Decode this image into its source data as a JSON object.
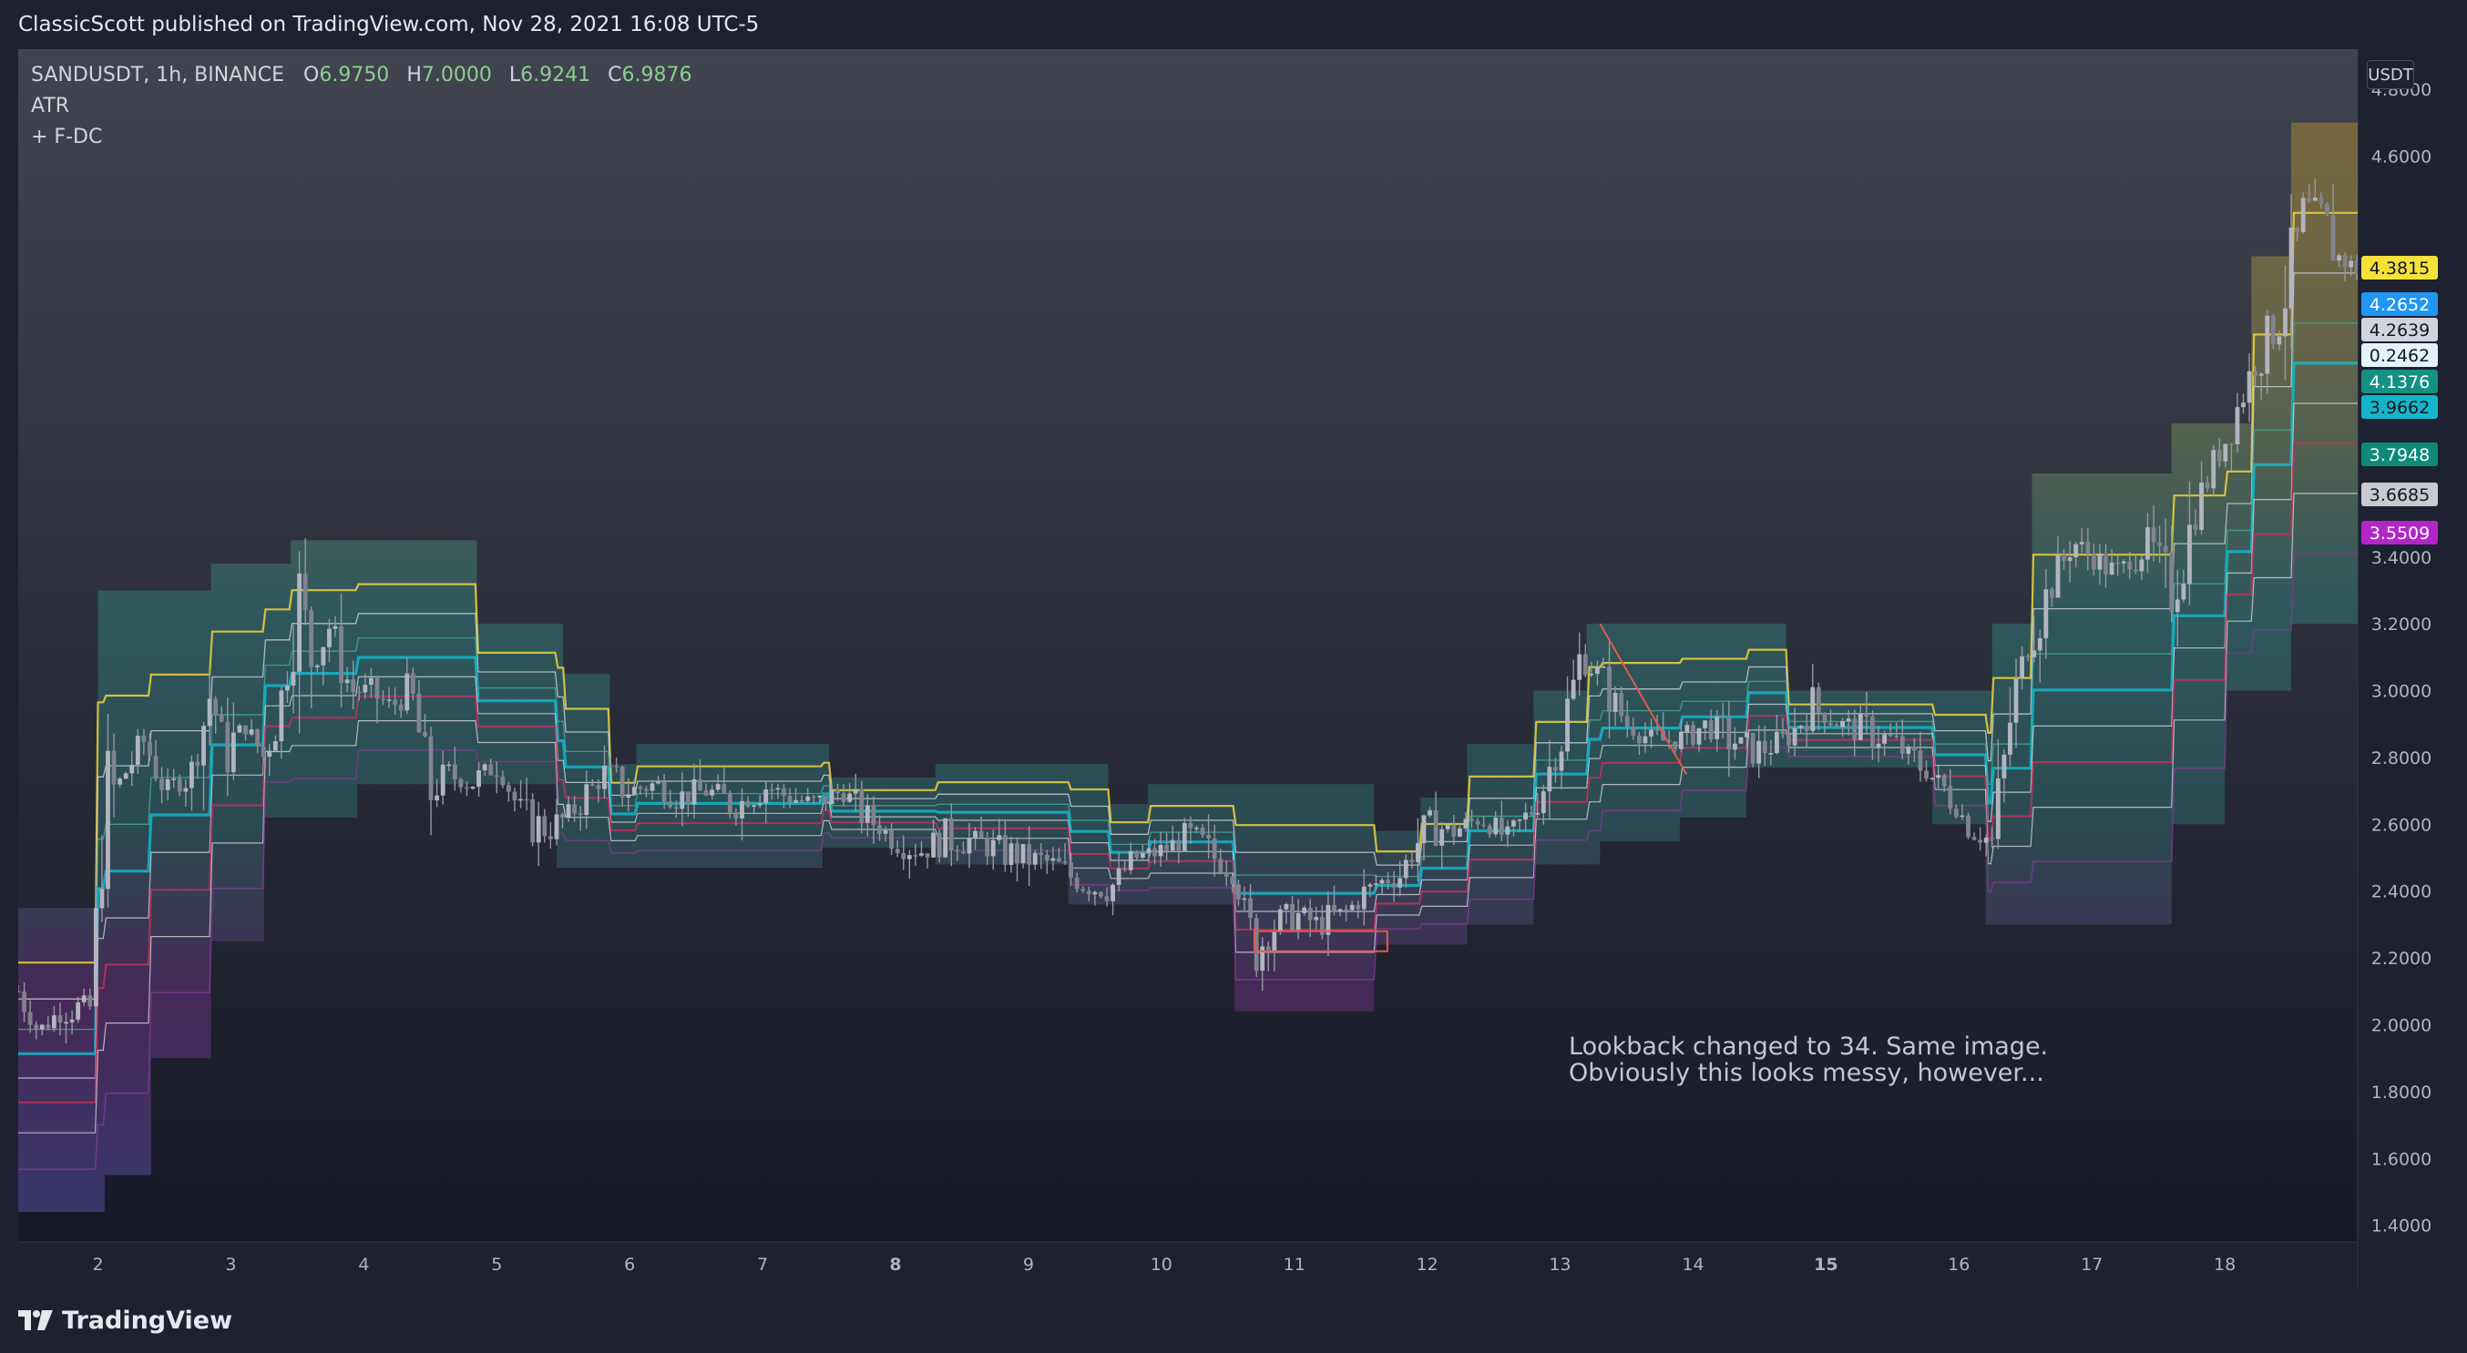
{
  "header": {
    "published": "ClassicScott published on TradingView.com, Nov 28, 2021 16:08 UTC-5"
  },
  "legend": {
    "symbol": "SANDUSDT, 1h, BINANCE",
    "o_label": "O",
    "o_value": "6.9750",
    "h_label": "H",
    "h_value": "7.0000",
    "l_label": "L",
    "l_value": "6.9241",
    "c_label": "C",
    "c_value": "6.9876",
    "indicator1": "ATR",
    "indicator2": "+ F-DC"
  },
  "currency": "USDT",
  "note": "Lookback changed to 34. Same image.\nObviously this looks messy, however...",
  "footer": {
    "brand": "TradingView"
  },
  "price_badges": [
    {
      "value": "4.3815",
      "bg": "#f5e13a",
      "fg": "#131722"
    },
    {
      "value": "4.2652",
      "bg": "#2196f3",
      "fg": "#ffffff"
    },
    {
      "value": "4.2639",
      "bg": "#d1d4dc",
      "fg": "#131722"
    },
    {
      "value": "0.2462",
      "bg": "#e3f2fd",
      "fg": "#131722"
    },
    {
      "value": "4.1376",
      "bg": "#149184",
      "fg": "#ffffff"
    },
    {
      "value": "3.9662",
      "bg": "#14b5c8",
      "fg": "#131722"
    },
    {
      "value": "3.7948",
      "bg": "#0f8a7a",
      "fg": "#ffffff"
    },
    {
      "value": "3.6685",
      "bg": "#c8cad0",
      "fg": "#131722"
    },
    {
      "value": "3.5509",
      "bg": "#b226c8",
      "fg": "#ffffff"
    }
  ],
  "colors": {
    "background_top": "#3f424f",
    "background_bottom": "#161925",
    "candles": "#9598a1",
    "upper_band": "#f0d43a",
    "mid_band": "#14b5c8",
    "lower_red": "#c2305a",
    "lower_purple": "#5a2a7a"
  },
  "chart_data": {
    "type": "candlestick",
    "symbol": "SANDUSDT",
    "interval": "1h",
    "x_ticks": [
      "2",
      "3",
      "4",
      "5",
      "6",
      "7",
      "8",
      "9",
      "10",
      "11",
      "12",
      "13",
      "14",
      "15",
      "16",
      "17",
      "18"
    ],
    "bold_ticks": [
      "8",
      "15"
    ],
    "y_ticks": [
      "4.8000",
      "4.6000",
      "3.4000",
      "3.2000",
      "3.0000",
      "2.8000",
      "2.6000",
      "2.4000",
      "2.2000",
      "2.0000",
      "1.8000",
      "1.6000",
      "1.4000"
    ],
    "ylim": [
      1.35,
      4.92
    ],
    "xlim": [
      1.4,
      19.0
    ],
    "close_path": [
      [
        1.4,
        2.1
      ],
      [
        1.55,
        1.98
      ],
      [
        1.75,
        2.05
      ],
      [
        1.95,
        2.05
      ],
      [
        2.05,
        2.65
      ],
      [
        2.2,
        2.75
      ],
      [
        2.35,
        2.85
      ],
      [
        2.5,
        2.7
      ],
      [
        2.7,
        2.75
      ],
      [
        2.85,
        3.0
      ],
      [
        2.95,
        2.8
      ],
      [
        3.1,
        2.9
      ],
      [
        3.25,
        2.8
      ],
      [
        3.4,
        3.0
      ],
      [
        3.5,
        3.3
      ],
      [
        3.6,
        3.1
      ],
      [
        3.75,
        3.2
      ],
      [
        3.9,
        3.0
      ],
      [
        4.05,
        3.0
      ],
      [
        4.2,
        2.95
      ],
      [
        4.35,
        3.0
      ],
      [
        4.5,
        2.7
      ],
      [
        4.65,
        2.75
      ],
      [
        4.8,
        2.72
      ],
      [
        5.0,
        2.78
      ],
      [
        5.2,
        2.62
      ],
      [
        5.4,
        2.58
      ],
      [
        5.6,
        2.65
      ],
      [
        5.8,
        2.75
      ],
      [
        6.0,
        2.7
      ],
      [
        6.2,
        2.72
      ],
      [
        6.4,
        2.68
      ],
      [
        6.6,
        2.7
      ],
      [
        6.8,
        2.65
      ],
      [
        7.0,
        2.72
      ],
      [
        7.2,
        2.68
      ],
      [
        7.4,
        2.66
      ],
      [
        7.6,
        2.7
      ],
      [
        7.8,
        2.62
      ],
      [
        8.0,
        2.55
      ],
      [
        8.2,
        2.52
      ],
      [
        8.4,
        2.56
      ],
      [
        8.6,
        2.55
      ],
      [
        8.8,
        2.52
      ],
      [
        9.0,
        2.5
      ],
      [
        9.2,
        2.48
      ],
      [
        9.4,
        2.42
      ],
      [
        9.6,
        2.4
      ],
      [
        9.8,
        2.5
      ],
      [
        10.0,
        2.52
      ],
      [
        10.2,
        2.56
      ],
      [
        10.4,
        2.5
      ],
      [
        10.55,
        2.45
      ],
      [
        10.7,
        2.22
      ],
      [
        10.85,
        2.3
      ],
      [
        11.0,
        2.33
      ],
      [
        11.2,
        2.3
      ],
      [
        11.4,
        2.34
      ],
      [
        11.6,
        2.42
      ],
      [
        11.8,
        2.45
      ],
      [
        12.0,
        2.6
      ],
      [
        12.2,
        2.58
      ],
      [
        12.4,
        2.62
      ],
      [
        12.6,
        2.56
      ],
      [
        12.8,
        2.65
      ],
      [
        13.0,
        2.85
      ],
      [
        13.15,
        3.1
      ],
      [
        13.3,
        3.05
      ],
      [
        13.5,
        2.9
      ],
      [
        13.7,
        2.85
      ],
      [
        13.9,
        2.85
      ],
      [
        14.1,
        2.9
      ],
      [
        14.3,
        2.85
      ],
      [
        14.5,
        2.82
      ],
      [
        14.7,
        2.85
      ],
      [
        14.9,
        2.95
      ],
      [
        15.1,
        2.9
      ],
      [
        15.3,
        2.88
      ],
      [
        15.5,
        2.85
      ],
      [
        15.7,
        2.78
      ],
      [
        15.9,
        2.7
      ],
      [
        16.1,
        2.58
      ],
      [
        16.25,
        2.55
      ],
      [
        16.4,
        2.95
      ],
      [
        16.55,
        3.2
      ],
      [
        16.7,
        3.3
      ],
      [
        16.85,
        3.45
      ],
      [
        17.0,
        3.4
      ],
      [
        17.2,
        3.35
      ],
      [
        17.4,
        3.45
      ],
      [
        17.6,
        3.3
      ],
      [
        17.8,
        3.55
      ],
      [
        18.0,
        3.75
      ],
      [
        18.2,
        3.95
      ],
      [
        18.4,
        4.1
      ],
      [
        18.6,
        4.45
      ],
      [
        18.75,
        4.4
      ],
      [
        18.85,
        4.3
      ],
      [
        19.0,
        4.26
      ]
    ],
    "bands": {
      "upper": [
        [
          1.4,
          2.35
        ],
        [
          2.0,
          2.35
        ],
        [
          2.0,
          3.3
        ],
        [
          2.85,
          3.3
        ],
        [
          2.85,
          3.38
        ],
        [
          3.45,
          3.38
        ],
        [
          3.45,
          3.45
        ],
        [
          4.85,
          3.45
        ],
        [
          4.85,
          3.2
        ],
        [
          5.5,
          3.2
        ],
        [
          5.5,
          3.05
        ],
        [
          5.85,
          3.05
        ],
        [
          5.85,
          2.78
        ],
        [
          6.05,
          2.78
        ],
        [
          6.05,
          2.84
        ],
        [
          7.5,
          2.84
        ],
        [
          7.5,
          2.74
        ],
        [
          8.3,
          2.74
        ],
        [
          8.3,
          2.78
        ],
        [
          9.6,
          2.78
        ],
        [
          9.6,
          2.66
        ],
        [
          9.9,
          2.66
        ],
        [
          9.9,
          2.72
        ],
        [
          11.6,
          2.72
        ],
        [
          11.6,
          2.58
        ],
        [
          11.95,
          2.58
        ],
        [
          11.95,
          2.68
        ],
        [
          12.3,
          2.68
        ],
        [
          12.3,
          2.84
        ],
        [
          12.8,
          2.84
        ],
        [
          12.8,
          3.0
        ],
        [
          13.2,
          3.0
        ],
        [
          13.2,
          3.2
        ],
        [
          14.7,
          3.2
        ],
        [
          14.7,
          3.0
        ],
        [
          16.25,
          3.0
        ],
        [
          16.25,
          3.2
        ],
        [
          16.55,
          3.2
        ],
        [
          16.55,
          3.65
        ],
        [
          17.6,
          3.65
        ],
        [
          17.6,
          3.8
        ],
        [
          18.2,
          3.8
        ],
        [
          18.2,
          4.3
        ],
        [
          18.5,
          4.3
        ],
        [
          18.5,
          4.7
        ],
        [
          19.0,
          4.7
        ]
      ],
      "lower": [
        [
          1.4,
          1.44
        ],
        [
          2.05,
          1.44
        ],
        [
          2.05,
          1.55
        ],
        [
          2.4,
          1.55
        ],
        [
          2.4,
          1.9
        ],
        [
          2.85,
          1.9
        ],
        [
          2.85,
          2.25
        ],
        [
          3.25,
          2.25
        ],
        [
          3.25,
          2.62
        ],
        [
          3.95,
          2.62
        ],
        [
          3.95,
          2.72
        ],
        [
          5.45,
          2.72
        ],
        [
          5.45,
          2.47
        ],
        [
          7.45,
          2.47
        ],
        [
          7.45,
          2.53
        ],
        [
          8.3,
          2.53
        ],
        [
          8.3,
          2.48
        ],
        [
          9.3,
          2.48
        ],
        [
          9.3,
          2.36
        ],
        [
          10.55,
          2.36
        ],
        [
          10.55,
          2.04
        ],
        [
          11.6,
          2.04
        ],
        [
          11.6,
          2.24
        ],
        [
          12.3,
          2.24
        ],
        [
          12.3,
          2.3
        ],
        [
          12.8,
          2.3
        ],
        [
          12.8,
          2.48
        ],
        [
          13.3,
          2.48
        ],
        [
          13.3,
          2.55
        ],
        [
          13.9,
          2.55
        ],
        [
          13.9,
          2.62
        ],
        [
          14.4,
          2.62
        ],
        [
          14.4,
          2.77
        ],
        [
          15.8,
          2.77
        ],
        [
          15.8,
          2.6
        ],
        [
          16.2,
          2.6
        ],
        [
          16.2,
          2.3
        ],
        [
          17.6,
          2.3
        ],
        [
          17.6,
          2.6
        ],
        [
          18.0,
          2.6
        ],
        [
          18.0,
          3.0
        ],
        [
          18.5,
          3.0
        ],
        [
          18.5,
          3.2
        ],
        [
          19.0,
          3.2
        ]
      ]
    },
    "annotations": [
      {
        "type": "trendline",
        "color": "#e25a4a",
        "from": [
          13.3,
          3.2
        ],
        "to": [
          13.95,
          2.75
        ]
      },
      {
        "type": "rectangle",
        "color": "#e25a4a",
        "x0": [
          10.7,
          2.28
        ],
        "x1": [
          11.7,
          2.22
        ]
      }
    ]
  }
}
